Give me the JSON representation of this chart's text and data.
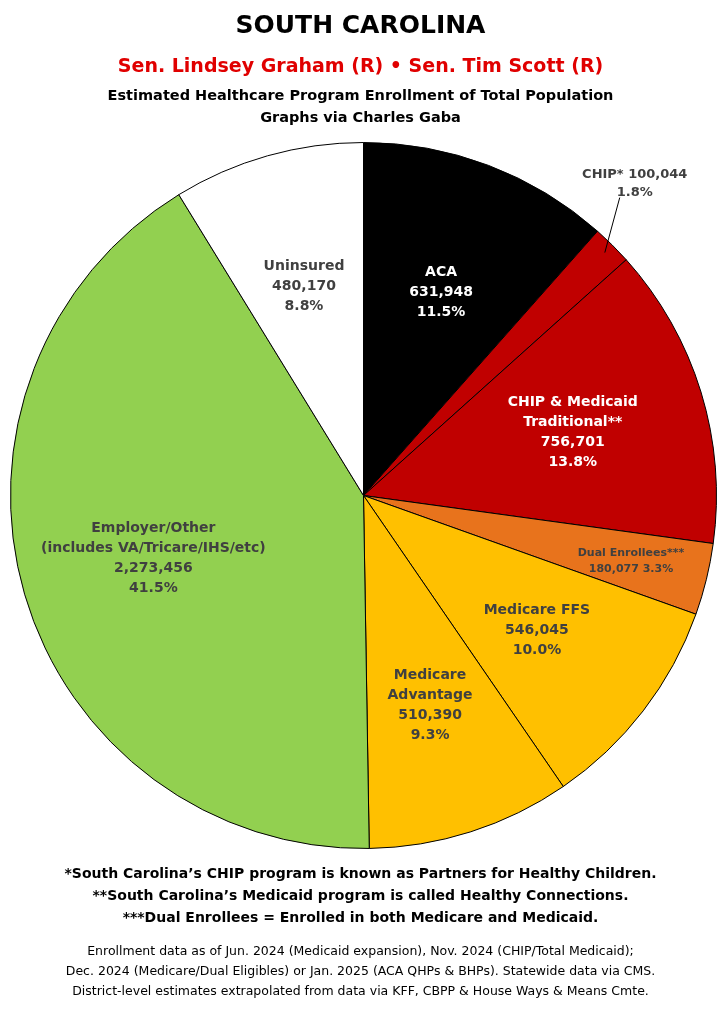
{
  "chart_data": {
    "type": "pie",
    "title": "SOUTH CAROLINA",
    "subtitle": "Sen. Lindsey Graham (R) • Sen. Tim Scott (R)",
    "categories": [
      "ACA",
      "CHIP*",
      "CHIP & Medicaid\nTraditional**",
      "Dual Enrollees***",
      "Medicare FFS",
      "Medicare\nAdvantage",
      "Employer/Other\n(includes VA/Tricare/IHS/etc)",
      "Uninsured"
    ],
    "values": [
      631948,
      100044,
      756701,
      180077,
      546045,
      510390,
      2273456,
      480170
    ],
    "value_labels": [
      "631,948\n11.5%",
      "100,044\n1.8%",
      "756,701\n13.8%",
      "180,077 3.3%",
      "546,045\n10.0%",
      "510,390\n9.3%",
      "2,273,456\n41.5%",
      "480,170\n8.8%"
    ],
    "colors": [
      "#000000",
      "#c00000",
      "#c00000",
      "#e8731c",
      "#ffc000",
      "#ffc000",
      "#92d050",
      "#ffffff"
    ],
    "annotations": [
      "Estimated Healthcare Program Enrollment of Total Population",
      "Graphs via Charles Gaba",
      "*South Carolina’s CHIP program is known as Partners for Healthy Children.",
      "**South Carolina’s Medicaid program is called Healthy Connections.",
      "***Dual Enrollees = Enrolled in both Medicare and Medicaid.",
      "Enrollment data as of Jun. 2024 (Medicaid expansion), Nov. 2024 (CHIP/Total Medicaid);",
      "Dec. 2024 (Medicare/Dual Eligibles) or Jan. 2025 (ACA QHPs & BHPs). Statewide data via CMS.",
      "District-level estimates extrapolated from data via KFF, CBPP & House Ways & Means Cmte."
    ],
    "data_labels": null
  }
}
